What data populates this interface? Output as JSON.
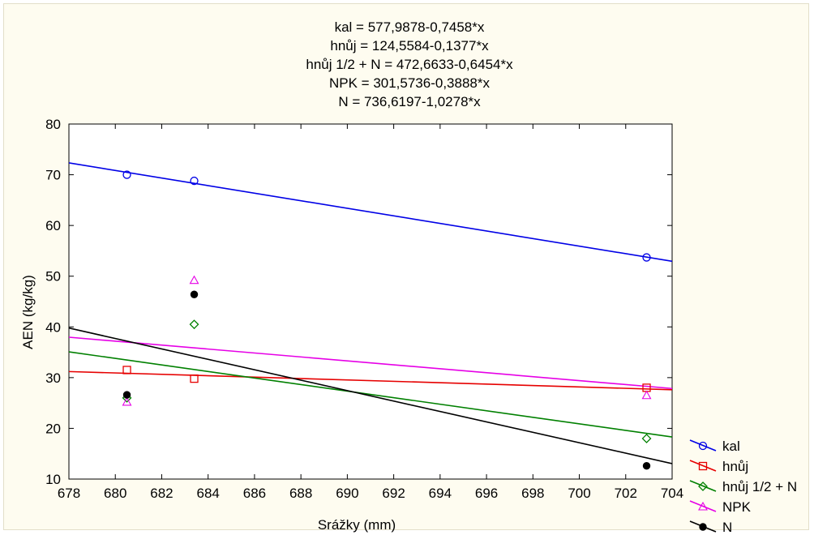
{
  "chart_data": {
    "type": "scatter",
    "equations": [
      "kal = 577,9878-0,7458*x",
      "hnůj = 124,5584-0,1377*x",
      "hnůj 1/2 + N = 472,6633-0,6454*x",
      "NPK = 301,5736-0,3888*x",
      "N = 736,6197-1,0278*x"
    ],
    "xlabel": "Srážky (mm)",
    "ylabel": "AEN (kg/kg)",
    "xlim": [
      678,
      704
    ],
    "ylim": [
      10,
      80
    ],
    "x_ticks": [
      678,
      680,
      682,
      684,
      686,
      688,
      690,
      692,
      694,
      696,
      698,
      700,
      702,
      704
    ],
    "y_ticks": [
      10,
      20,
      30,
      40,
      50,
      60,
      70,
      80
    ],
    "grid": false,
    "legend_position": "bottom-right outside",
    "series": [
      {
        "name": "kal",
        "color": "#0000e6",
        "marker": "circle",
        "x": [
          680.5,
          683.4,
          702.9
        ],
        "y": [
          70.0,
          68.8,
          53.7
        ],
        "fit": {
          "intercept": 577.9878,
          "slope": -0.7458
        }
      },
      {
        "name": "hnůj",
        "color": "#e60000",
        "marker": "square",
        "x": [
          680.5,
          683.4,
          702.9
        ],
        "y": [
          31.5,
          29.8,
          28.0
        ],
        "fit": {
          "intercept": 124.5584,
          "slope": -0.1377
        }
      },
      {
        "name": "hnůj 1/2 + N",
        "color": "#008000",
        "marker": "diamond",
        "x": [
          680.5,
          683.4,
          702.9
        ],
        "y": [
          26.0,
          40.5,
          18.0
        ],
        "fit": {
          "intercept": 472.6633,
          "slope": -0.6454
        }
      },
      {
        "name": "NPK",
        "color": "#e600e6",
        "marker": "triangle",
        "x": [
          680.5,
          683.4,
          702.9
        ],
        "y": [
          25.2,
          49.2,
          26.5
        ],
        "fit": {
          "intercept": 301.5736,
          "slope": -0.3888
        }
      },
      {
        "name": "N",
        "color": "#000000",
        "marker": "dot",
        "x": [
          680.5,
          683.4,
          702.9
        ],
        "y": [
          26.6,
          46.4,
          12.6
        ],
        "fit": {
          "intercept": 736.6197,
          "slope": -1.0278
        }
      }
    ]
  }
}
